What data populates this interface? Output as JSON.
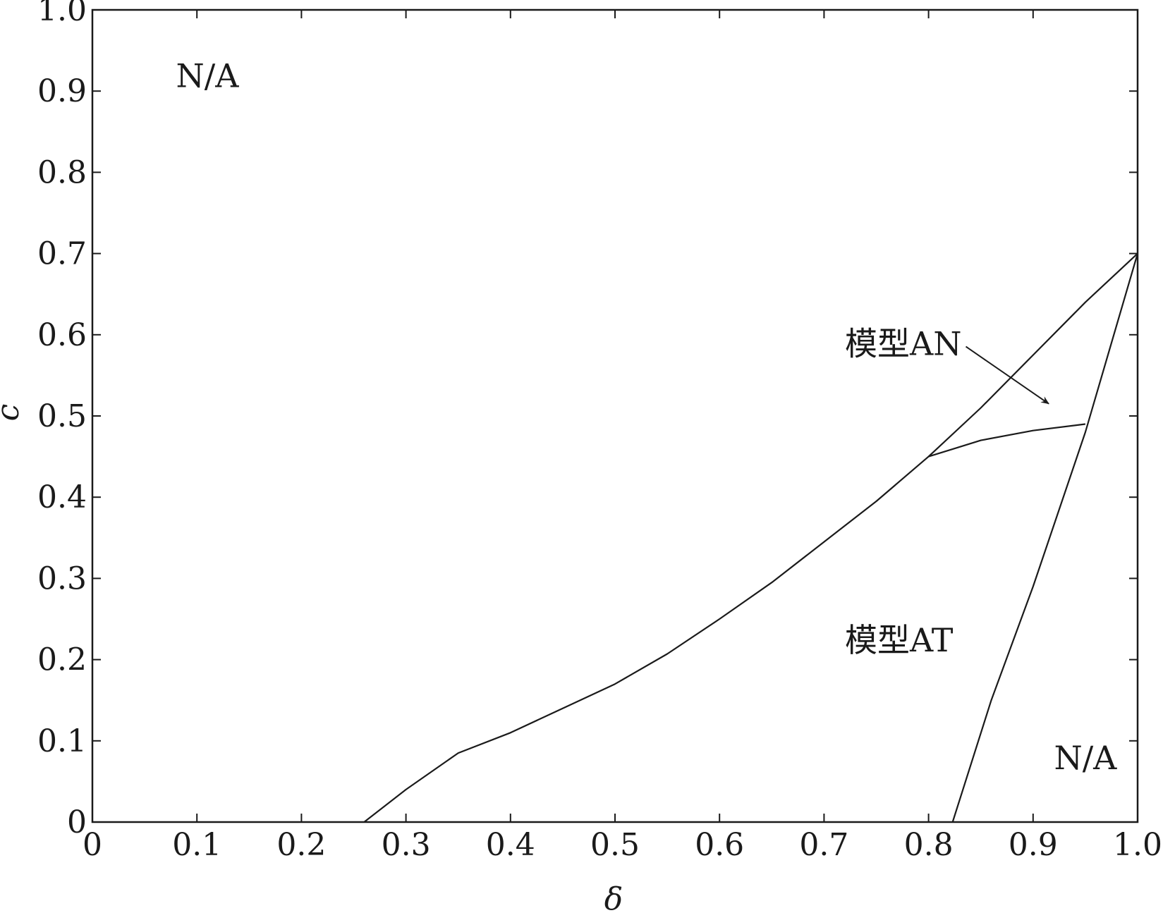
{
  "chart_data": {
    "type": "line",
    "title": "",
    "xlabel": "δ",
    "ylabel": "c",
    "xlim": [
      0,
      1.0
    ],
    "ylim": [
      0,
      1.0
    ],
    "grid": false,
    "xticks": [
      0,
      0.1,
      0.2,
      0.3,
      0.4,
      0.5,
      0.6,
      0.7,
      0.8,
      0.9,
      1.0
    ],
    "yticks": [
      0,
      0.1,
      0.2,
      0.3,
      0.4,
      0.5,
      0.6,
      0.7,
      0.8,
      0.9,
      1.0
    ],
    "xtick_labels": [
      "0",
      "0.1",
      "0.2",
      "0.3",
      "0.4",
      "0.5",
      "0.6",
      "0.7",
      "0.8",
      "0.9",
      "1.0"
    ],
    "ytick_labels": [
      "0",
      "0.1",
      "0.2",
      "0.3",
      "0.4",
      "0.5",
      "0.6",
      "0.7",
      "0.8",
      "0.9",
      "1.0"
    ],
    "series": [
      {
        "x": [
          0.26,
          0.3,
          0.35,
          0.4,
          0.45,
          0.5,
          0.55,
          0.6,
          0.65,
          0.7,
          0.75,
          0.8,
          0.85,
          0.9,
          0.95,
          1.0
        ],
        "y": [
          0,
          0.04,
          0.085,
          0.11,
          0.14,
          0.17,
          0.207,
          0.25,
          0.295,
          0.345,
          0.395,
          0.45,
          0.51,
          0.575,
          0.64,
          0.7
        ]
      },
      {
        "x": [
          0.8,
          0.85,
          0.9,
          0.95
        ],
        "y": [
          0.45,
          0.47,
          0.482,
          0.49
        ]
      },
      {
        "x": [
          0.823,
          0.86,
          0.9,
          0.95,
          1.0
        ],
        "y": [
          0,
          0.15,
          0.29,
          0.48,
          0.7
        ]
      }
    ],
    "annotations": [
      {
        "text": "N/A",
        "x": 0.08,
        "y": 0.905
      },
      {
        "text": "模型AN",
        "x": 0.72,
        "y": 0.575,
        "arrow_to": [
          0.915,
          0.515
        ]
      },
      {
        "text": "模型AT",
        "x": 0.72,
        "y": 0.21
      },
      {
        "text": "N/A",
        "x": 0.92,
        "y": 0.065
      }
    ]
  }
}
